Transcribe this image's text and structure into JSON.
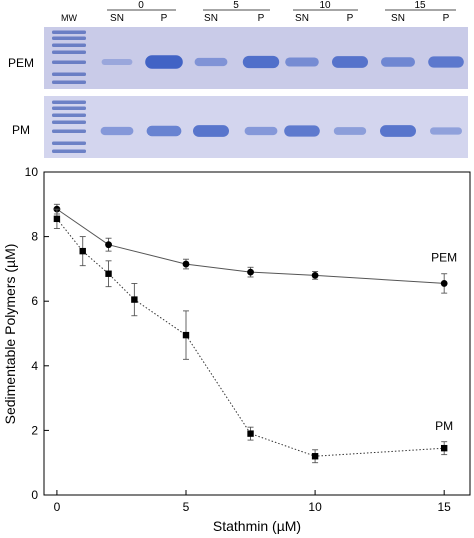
{
  "gels": {
    "lanes_header": {
      "mw": "MW",
      "groups": [
        {
          "conc": "0",
          "sn": "SN",
          "p": "P"
        },
        {
          "conc": "5",
          "sn": "SN",
          "p": "P"
        },
        {
          "conc": "10",
          "sn": "SN",
          "p": "P"
        },
        {
          "conc": "15",
          "sn": "SN",
          "p": "P"
        }
      ]
    },
    "panels": [
      {
        "label": "PEM",
        "band_intensity": [
          0.1,
          0.95,
          0.35,
          0.8,
          0.45,
          0.75,
          0.5,
          0.7
        ]
      },
      {
        "label": "PM",
        "band_intensity": [
          0.35,
          0.6,
          0.75,
          0.35,
          0.7,
          0.3,
          0.75,
          0.25
        ]
      }
    ],
    "colors": {
      "gel_bg": "#c9cbe8",
      "gel_bg2": "#d3d5ee",
      "band": "#3b5fc4",
      "ladder": "#4a64b8"
    }
  },
  "chart_data": {
    "type": "line",
    "xlabel": "Stathmin (µM)",
    "ylabel": "Sedimentable Polymers (µM)",
    "xlim": [
      -0.5,
      16
    ],
    "ylim": [
      0,
      10
    ],
    "xticks": [
      0,
      5,
      10,
      15
    ],
    "yticks": [
      0,
      2,
      4,
      6,
      8,
      10
    ],
    "grid": false,
    "series": [
      {
        "name": "PEM",
        "marker": "circle",
        "line": "solid",
        "x": [
          0,
          2,
          5,
          7.5,
          10,
          15
        ],
        "y": [
          8.85,
          7.75,
          7.15,
          6.9,
          6.8,
          6.55
        ],
        "err": [
          0.15,
          0.2,
          0.15,
          0.15,
          0.12,
          0.3
        ]
      },
      {
        "name": "PM",
        "marker": "square",
        "line": "dotted",
        "x": [
          0,
          1,
          2,
          3,
          5,
          7.5,
          10,
          15
        ],
        "y": [
          8.55,
          7.55,
          6.85,
          6.05,
          4.95,
          1.9,
          1.2,
          1.45
        ],
        "err": [
          0.3,
          0.45,
          0.4,
          0.5,
          0.75,
          0.2,
          0.2,
          0.2
        ]
      }
    ]
  }
}
